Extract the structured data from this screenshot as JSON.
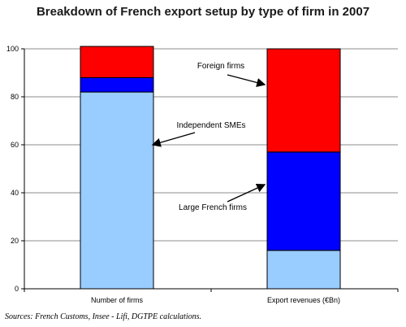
{
  "chart_data": {
    "type": "bar",
    "stacked": true,
    "title": "Breakdown of French export setup by type of firm in 2007",
    "source": "Sources: French Customs, Insee - Lifi, DGTPE calculations.",
    "categories": [
      "Number of firms",
      "Export revenues (€Bn)"
    ],
    "series": [
      {
        "name": "Independent SMEs",
        "values": [
          82,
          16
        ],
        "color": "#99ccff"
      },
      {
        "name": "Large French firms",
        "values": [
          6,
          41
        ],
        "color": "#0000ff"
      },
      {
        "name": "Foreign firms",
        "values": [
          13,
          43
        ],
        "color": "#ff0000"
      }
    ],
    "ylim": [
      0,
      100
    ],
    "yticks": [
      0,
      20,
      40,
      60,
      80,
      100
    ],
    "grid": true,
    "legend": "inline annotations with arrows"
  }
}
